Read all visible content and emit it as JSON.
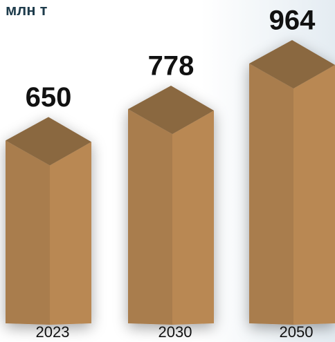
{
  "chart_data": {
    "type": "bar3d",
    "title": "млн т",
    "categories": [
      "2023",
      "2030",
      "2050"
    ],
    "values": [
      650,
      778,
      964
    ],
    "colors": {
      "top": "#8a6840",
      "left": "#a97d4e",
      "right": "#b98852"
    }
  }
}
